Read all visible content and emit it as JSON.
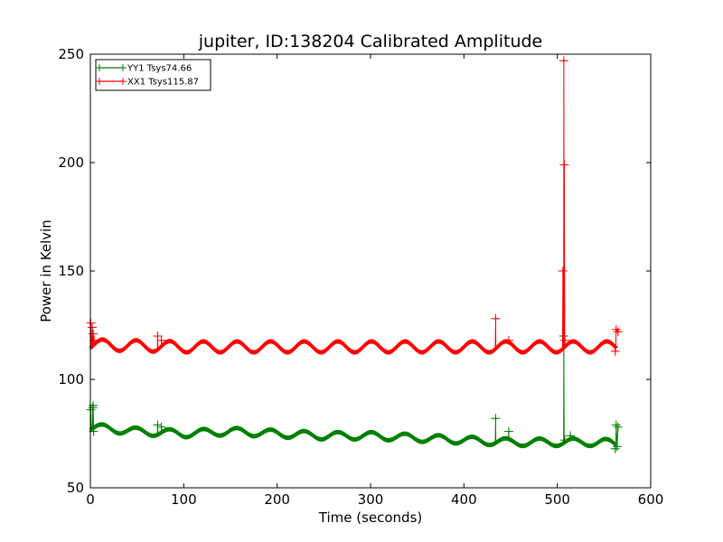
{
  "chart_data": {
    "type": "line",
    "title": "jupiter, ID:138204 Calibrated Amplitude",
    "xlabel": "Time (seconds)",
    "ylabel": "Power in Kelvin",
    "xlim": [
      0,
      600
    ],
    "ylim": [
      50,
      250
    ],
    "xticks": [
      0,
      100,
      200,
      300,
      400,
      500,
      600
    ],
    "yticks": [
      50,
      100,
      150,
      200,
      250
    ],
    "grid": false,
    "legend_position": "top-left",
    "marker": "plus",
    "series": [
      {
        "name": "YY1 Tsys74.66",
        "color": "#008000",
        "baseline": [
          [
            1,
            78
          ],
          [
            50,
            76
          ],
          [
            100,
            75
          ],
          [
            150,
            76
          ],
          [
            200,
            75
          ],
          [
            250,
            74
          ],
          [
            300,
            74
          ],
          [
            350,
            73
          ],
          [
            400,
            72
          ],
          [
            450,
            71
          ],
          [
            500,
            71
          ],
          [
            550,
            71
          ],
          [
            563,
            70
          ]
        ],
        "oscillation_period_s": 36,
        "oscillation_amplitude": 1.7,
        "points": [
          [
            0.5,
            86
          ],
          [
            2.5,
            87
          ],
          [
            3,
            88
          ],
          [
            3.5,
            76
          ],
          [
            72,
            79
          ],
          [
            76,
            78
          ],
          [
            434,
            82
          ],
          [
            448,
            76
          ],
          [
            507,
            120
          ],
          [
            508,
            72
          ],
          [
            514,
            74
          ],
          [
            562,
            68
          ],
          [
            563,
            79
          ],
          [
            565,
            78
          ],
          [
            564,
            69
          ]
        ]
      },
      {
        "name": "XX1 Tsys115.87",
        "color": "#ff0000",
        "baseline": [
          [
            1,
            116
          ],
          [
            100,
            115
          ],
          [
            200,
            115
          ],
          [
            300,
            115
          ],
          [
            400,
            115
          ],
          [
            500,
            115
          ],
          [
            563,
            115
          ]
        ],
        "oscillation_period_s": 36,
        "oscillation_amplitude": 2.5,
        "points": [
          [
            0.5,
            126
          ],
          [
            2,
            124
          ],
          [
            3,
            121
          ],
          [
            4,
            118
          ],
          [
            72,
            120
          ],
          [
            76,
            118
          ],
          [
            434,
            128
          ],
          [
            448,
            118
          ],
          [
            506,
            150
          ],
          [
            507,
            247
          ],
          [
            507.5,
            199
          ],
          [
            508,
            118
          ],
          [
            562,
            113
          ],
          [
            563,
            123
          ],
          [
            565,
            122
          ]
        ]
      }
    ]
  }
}
